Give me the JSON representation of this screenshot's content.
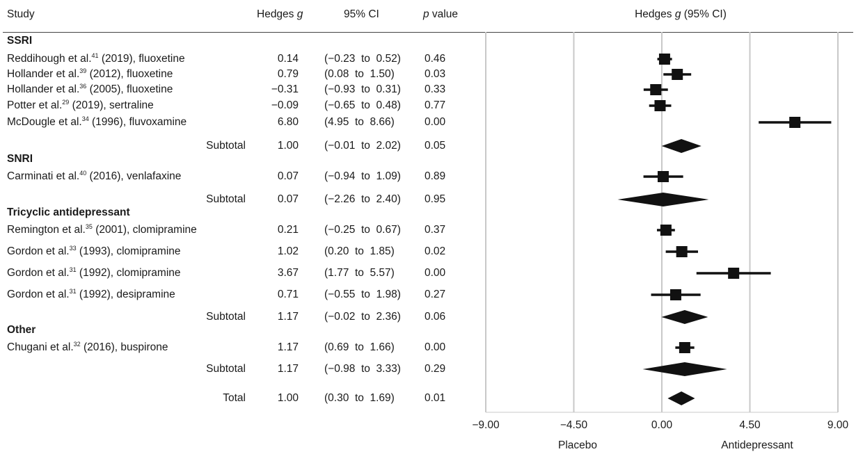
{
  "headers": {
    "study": "Study",
    "hedges_g": "Hedges g",
    "ci": "95% CI",
    "p": "p value",
    "plot": "Hedges g (95% CI)"
  },
  "axis": {
    "tick_labels": [
      "−9.00",
      "−4.50",
      "0.00",
      "4.50",
      "9.00"
    ],
    "left_label": "Placebo",
    "right_label": "Antidepressant"
  },
  "chart_data": {
    "type": "forest",
    "title": "",
    "xlabel": "",
    "xlim": [
      -9,
      9
    ],
    "ticks": [
      -9,
      -4.5,
      0,
      4.5,
      9
    ],
    "grid": true,
    "groups": [
      {
        "name": "SSRI",
        "studies": [
          {
            "author": "Reddihough et al.",
            "ref": "41",
            "rest": " (2019), fluoxetine",
            "g": 0.14,
            "lo": -0.23,
            "hi": 0.52,
            "g_text": "0.14",
            "ci_text": "(−0.23  to  0.52)",
            "p_text": "0.46"
          },
          {
            "author": "Hollander et al.",
            "ref": "39",
            "rest": " (2012), fluoxetine",
            "g": 0.79,
            "lo": 0.08,
            "hi": 1.5,
            "g_text": "0.79",
            "ci_text": "(0.08  to  1.50)",
            "p_text": "0.03"
          },
          {
            "author": "Hollander et al.",
            "ref": "36",
            "rest": " (2005), fluoxetine",
            "g": -0.31,
            "lo": -0.93,
            "hi": 0.31,
            "g_text": "−0.31",
            "ci_text": "(−0.93  to  0.31)",
            "p_text": "0.33"
          },
          {
            "author": "Potter et al.",
            "ref": "29",
            "rest": " (2019), sertraline",
            "g": -0.09,
            "lo": -0.65,
            "hi": 0.48,
            "g_text": "−0.09",
            "ci_text": "(−0.65  to  0.48)",
            "p_text": "0.77"
          },
          {
            "author": "McDougle et al.",
            "ref": "34",
            "rest": " (1996), fluvoxamine",
            "g": 6.8,
            "lo": 4.95,
            "hi": 8.66,
            "g_text": "6.80",
            "ci_text": "(4.95  to  8.66)",
            "p_text": "0.00"
          }
        ],
        "subtotal": {
          "label": "Subtotal",
          "g": 1.0,
          "lo": -0.01,
          "hi": 2.02,
          "g_text": "1.00",
          "ci_text": "(−0.01  to  2.02)",
          "p_text": "0.05"
        }
      },
      {
        "name": "SNRI",
        "studies": [
          {
            "author": "Carminati et al.",
            "ref": "40",
            "rest": " (2016), venlafaxine",
            "g": 0.07,
            "lo": -0.94,
            "hi": 1.09,
            "g_text": "0.07",
            "ci_text": "(−0.94  to  1.09)",
            "p_text": "0.89"
          }
        ],
        "subtotal": {
          "label": "Subtotal",
          "g": 0.07,
          "lo": -2.26,
          "hi": 2.4,
          "g_text": "0.07",
          "ci_text": "(−2.26  to  2.40)",
          "p_text": "0.95"
        }
      },
      {
        "name": "Tricyclic antidepressant",
        "studies": [
          {
            "author": "Remington et al.",
            "ref": "35",
            "rest": " (2001), clomipramine",
            "g": 0.21,
            "lo": -0.25,
            "hi": 0.67,
            "g_text": "0.21",
            "ci_text": "(−0.25  to  0.67)",
            "p_text": "0.37"
          },
          {
            "author": "Gordon et al.",
            "ref": "33",
            "rest": " (1993), clomipramine",
            "g": 1.02,
            "lo": 0.2,
            "hi": 1.85,
            "g_text": "1.02",
            "ci_text": "(0.20  to  1.85)",
            "p_text": "0.02"
          },
          {
            "author": "Gordon et al.",
            "ref": "31",
            "rest": " (1992), clomipramine",
            "g": 3.67,
            "lo": 1.77,
            "hi": 5.57,
            "g_text": "3.67",
            "ci_text": "(1.77  to  5.57)",
            "p_text": "0.00"
          },
          {
            "author": "Gordon et al.",
            "ref": "31",
            "rest": " (1992), desipramine",
            "g": 0.71,
            "lo": -0.55,
            "hi": 1.98,
            "g_text": "0.71",
            "ci_text": "(−0.55  to  1.98)",
            "p_text": "0.27"
          }
        ],
        "subtotal": {
          "label": "Subtotal",
          "g": 1.17,
          "lo": -0.02,
          "hi": 2.36,
          "g_text": "1.17",
          "ci_text": "(−0.02  to  2.36)",
          "p_text": "0.06"
        }
      },
      {
        "name": "Other",
        "studies": [
          {
            "author": "Chugani et al.",
            "ref": "32",
            "rest": " (2016), buspirone",
            "g": 1.17,
            "lo": 0.69,
            "hi": 1.66,
            "g_text": "1.17",
            "ci_text": "(0.69  to  1.66)",
            "p_text": "0.00"
          }
        ],
        "subtotal": {
          "label": "Subtotal",
          "g": 1.17,
          "lo": -0.98,
          "hi": 3.33,
          "g_text": "1.17",
          "ci_text": "(−0.98  to  3.33)",
          "p_text": "0.29"
        }
      }
    ],
    "total": {
      "label": "Total",
      "g": 1.0,
      "lo": 0.3,
      "hi": 1.69,
      "g_text": "1.00",
      "ci_text": "(0.30  to  1.69)",
      "p_text": "0.01"
    }
  }
}
